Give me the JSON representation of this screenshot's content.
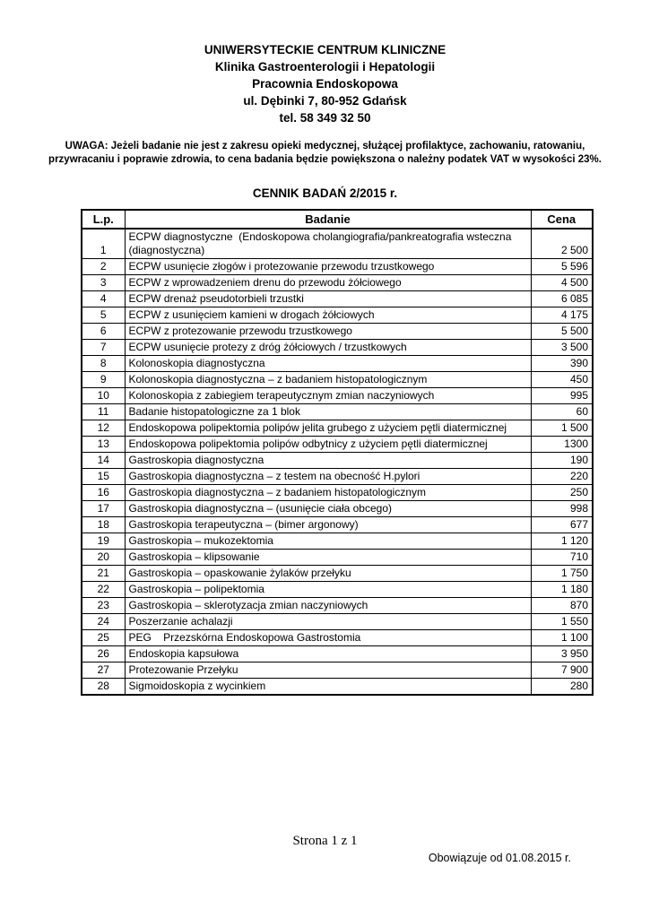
{
  "header": {
    "lines": [
      "UNIWERSYTECKIE CENTRUM KLINICZNE",
      "Klinika Gastroenterologii i Hepatologii",
      "Pracownia Endoskopowa",
      "ul. Dębinki 7, 80-952 Gdańsk",
      "tel. 58 349 32 50"
    ]
  },
  "notice": "UWAGA: Jeżeli badanie nie jest z zakresu opieki medycznej, służącej profilaktyce, zachowaniu, ratowaniu, przywracaniu i poprawie zdrowia, to cena badania będzie powiększona o należny podatek VAT w wysokości 23%.",
  "table_title": "CENNIK BADAŃ 2/2015 r.",
  "table": {
    "columns": [
      "L.p.",
      "Badanie",
      "Cena"
    ],
    "rows": [
      {
        "lp": "1",
        "badanie": "ECPW diagnostyczne  (Endoskopowa cholangiografia/pankreatografia wsteczna (diagnostyczna)",
        "cena": "2 500"
      },
      {
        "lp": "2",
        "badanie": "ECPW usunięcie złogów i protezowanie przewodu trzustkowego",
        "cena": "5 596"
      },
      {
        "lp": "3",
        "badanie": "ECPW z wprowadzeniem drenu do przewodu żółciowego",
        "cena": "4 500"
      },
      {
        "lp": "4",
        "badanie": "ECPW drenaż pseudotorbieli trzustki",
        "cena": "6 085"
      },
      {
        "lp": "5",
        "badanie": "ECPW z usunięciem kamieni w drogach żółciowych",
        "cena": "4 175"
      },
      {
        "lp": "6",
        "badanie": "ECPW z protezowanie przewodu trzustkowego",
        "cena": "5 500"
      },
      {
        "lp": "7",
        "badanie": "ECPW usunięcie protezy z dróg żółciowych / trzustkowych",
        "cena": "3 500"
      },
      {
        "lp": "8",
        "badanie": "Kolonoskopia diagnostyczna",
        "cena": "390"
      },
      {
        "lp": "9",
        "badanie": "Kolonoskopia diagnostyczna – z badaniem histopatologicznym",
        "cena": "450"
      },
      {
        "lp": "10",
        "badanie": "Kolonoskopia z zabiegiem terapeutycznym zmian naczyniowych",
        "cena": "995"
      },
      {
        "lp": "11",
        "badanie": "Badanie histopatologiczne za 1 blok",
        "cena": "60"
      },
      {
        "lp": "12",
        "badanie": "Endoskopowa polipektomia polipów jelita grubego z użyciem pętli diatermicznej",
        "cena": "1 500"
      },
      {
        "lp": "13",
        "badanie": "Endoskopowa polipektomia polipów odbytnicy z użyciem pętli diatermicznej",
        "cena": "1300"
      },
      {
        "lp": "14",
        "badanie": "Gastroskopia diagnostyczna",
        "cena": "190"
      },
      {
        "lp": "15",
        "badanie": "Gastroskopia diagnostyczna – z testem na obecność H.pylori",
        "cena": "220"
      },
      {
        "lp": "16",
        "badanie": "Gastroskopia diagnostyczna – z badaniem histopatologicznym",
        "cena": "250"
      },
      {
        "lp": "17",
        "badanie": "Gastroskopia diagnostyczna – (usunięcie ciała obcego)",
        "cena": "998"
      },
      {
        "lp": "18",
        "badanie": "Gastroskopia terapeutyczna – (bimer argonowy)",
        "cena": "677"
      },
      {
        "lp": "19",
        "badanie": "Gastroskopia – mukozektomia",
        "cena": "1 120"
      },
      {
        "lp": "20",
        "badanie": "Gastroskopia – klipsowanie",
        "cena": "710"
      },
      {
        "lp": "21",
        "badanie": "Gastroskopia – opaskowanie żylaków przełyku",
        "cena": "1 750"
      },
      {
        "lp": "22",
        "badanie": "Gastroskopia – polipektomia",
        "cena": "1 180"
      },
      {
        "lp": "23",
        "badanie": "Gastroskopia – sklerotyzacja zmian naczyniowych",
        "cena": "870"
      },
      {
        "lp": "24",
        "badanie": "Poszerzanie achalazji",
        "cena": "1 550"
      },
      {
        "lp": "25",
        "badanie": "PEG    Przezskórna Endoskopowa Gastrostomia",
        "cena": "1 100"
      },
      {
        "lp": "26",
        "badanie": "Endoskopia kapsułowa",
        "cena": "3 950"
      },
      {
        "lp": "27",
        "badanie": "Protezowanie Przełyku",
        "cena": "7 900"
      },
      {
        "lp": "28",
        "badanie": "Sigmoidoskopia z wycinkiem",
        "cena": "280"
      }
    ]
  },
  "footer": {
    "page_label": "Strona 1 z 1",
    "valid_from": "Obowiązuje od 01.08.2015 r."
  }
}
